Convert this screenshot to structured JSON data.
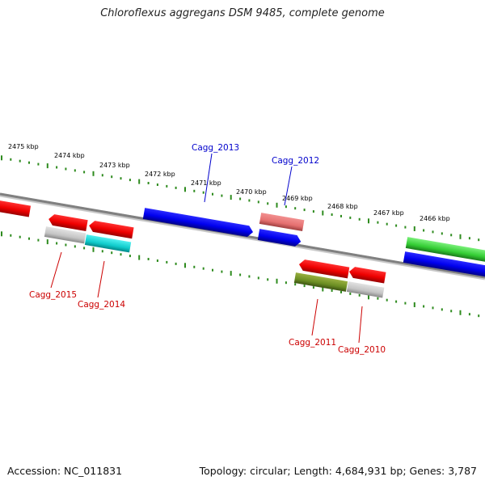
{
  "title": "Chloroflexus aggregans DSM 9485, complete genome",
  "footer": {
    "accession": "Accession: NC_011831",
    "topology": "Topology: circular; Length: 4,684,931 bp; Genes: 3,787"
  },
  "ticks": [
    {
      "label": "2475 kbp"
    },
    {
      "label": "2474 kbp"
    },
    {
      "label": "2473 kbp"
    },
    {
      "label": "2472 kbp"
    },
    {
      "label": "2471 kbp"
    },
    {
      "label": "2470 kbp"
    },
    {
      "label": "2469 kbp"
    },
    {
      "label": "2468 kbp"
    },
    {
      "label": "2467 kbp"
    },
    {
      "label": "2466 kbp"
    }
  ],
  "gene_labels": [
    {
      "label": "Cagg_2013",
      "color": "#0000cc"
    },
    {
      "label": "Cagg_2012",
      "color": "#0000cc"
    },
    {
      "label": "Cagg_2015",
      "color": "#cc0000"
    },
    {
      "label": "Cagg_2014",
      "color": "#cc0000"
    },
    {
      "label": "Cagg_2011",
      "color": "#cc0000"
    },
    {
      "label": "Cagg_2010",
      "color": "#cc0000"
    }
  ],
  "colors": {
    "backbone": "#7a7a7a",
    "ruler": "#2e8b1e",
    "forward_strand": "#0000ee",
    "reverse_strand": "#ee0000"
  }
}
